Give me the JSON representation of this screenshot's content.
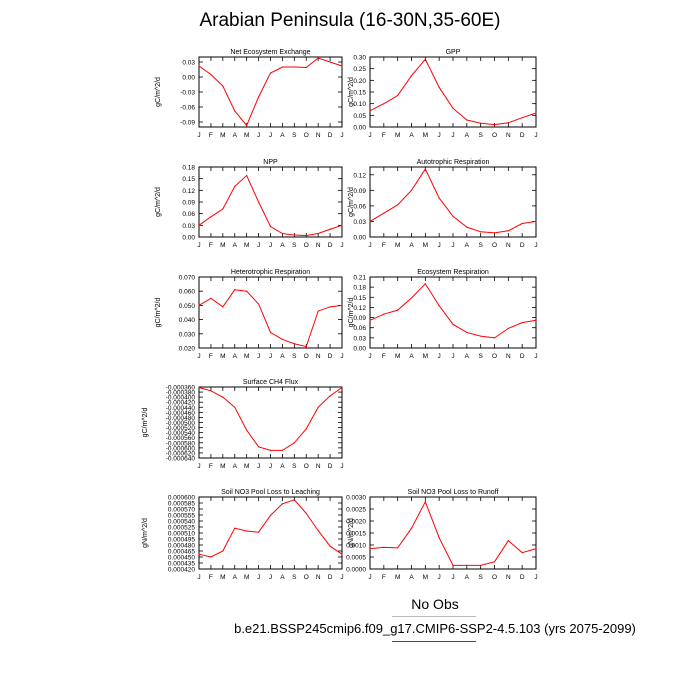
{
  "title": "Arabian Peninsula (16-30N,35-60E)",
  "months": [
    "J",
    "F",
    "M",
    "A",
    "M",
    "J",
    "J",
    "A",
    "S",
    "O",
    "N",
    "D",
    "J"
  ],
  "series_color": "#ff0000",
  "legend": {
    "obs_label": "No Obs",
    "obs_color": "#b9b9b9",
    "case_label": "b.e21.BSSP245cmip6.f09_g17.CMIP6-SSP2-4.5.103 (yrs 2075-2099)",
    "case_color": "#ff0000"
  },
  "chart_data": [
    {
      "type": "line",
      "title": "Net Ecosystem Exchange",
      "ylabel": "gC/m^2/d",
      "ylim": [
        -0.1,
        0.04
      ],
      "yticks": [
        -0.09,
        -0.06,
        -0.03,
        0.0,
        0.03
      ],
      "ytick_labels": [
        "-0.09",
        "-0.06",
        "-0.03",
        "0.00",
        "0.03"
      ],
      "x": [
        "J",
        "F",
        "M",
        "A",
        "M",
        "J",
        "J",
        "A",
        "S",
        "O",
        "N",
        "D",
        "J"
      ],
      "values": [
        0.022,
        0.005,
        -0.018,
        -0.068,
        -0.097,
        -0.04,
        0.008,
        0.02,
        0.02,
        0.019,
        0.038,
        0.03,
        0.022
      ]
    },
    {
      "type": "line",
      "title": "GPP",
      "ylabel": "gC/m^2/d",
      "ylim": [
        0.0,
        0.3
      ],
      "yticks": [
        0.0,
        0.05,
        0.1,
        0.15,
        0.2,
        0.25,
        0.3
      ],
      "ytick_labels": [
        "0.00",
        "0.05",
        "0.10",
        "0.15",
        "0.20",
        "0.25",
        "0.30"
      ],
      "x": [
        "J",
        "F",
        "M",
        "A",
        "M",
        "J",
        "J",
        "A",
        "S",
        "O",
        "N",
        "D",
        "J"
      ],
      "values": [
        0.07,
        0.1,
        0.135,
        0.22,
        0.29,
        0.17,
        0.08,
        0.03,
        0.016,
        0.01,
        0.018,
        0.04,
        0.06
      ]
    },
    {
      "type": "line",
      "title": "NPP",
      "ylabel": "gC/m^2/d",
      "ylim": [
        0.0,
        0.18
      ],
      "yticks": [
        0.0,
        0.03,
        0.06,
        0.09,
        0.12,
        0.15,
        0.18
      ],
      "ytick_labels": [
        "0.00",
        "0.03",
        "0.06",
        "0.09",
        "0.12",
        "0.15",
        "0.18"
      ],
      "x": [
        "J",
        "F",
        "M",
        "A",
        "M",
        "J",
        "J",
        "A",
        "S",
        "O",
        "N",
        "D",
        "J"
      ],
      "values": [
        0.03,
        0.052,
        0.072,
        0.13,
        0.158,
        0.09,
        0.027,
        0.009,
        0.005,
        0.004,
        0.009,
        0.02,
        0.03
      ]
    },
    {
      "type": "line",
      "title": "Autotrophic Respiration",
      "ylabel": "gC/m^2/d",
      "ylim": [
        0.0,
        0.135
      ],
      "yticks": [
        0.0,
        0.03,
        0.06,
        0.09,
        0.12
      ],
      "ytick_labels": [
        "0.00",
        "0.03",
        "0.06",
        "0.09",
        "0.12"
      ],
      "x": [
        "J",
        "F",
        "M",
        "A",
        "M",
        "J",
        "J",
        "A",
        "S",
        "O",
        "N",
        "D",
        "J"
      ],
      "values": [
        0.03,
        0.046,
        0.062,
        0.09,
        0.131,
        0.075,
        0.04,
        0.019,
        0.01,
        0.008,
        0.012,
        0.026,
        0.03
      ]
    },
    {
      "type": "line",
      "title": "Heterotrophic Respiration",
      "ylabel": "gC/m^2/d",
      "ylim": [
        0.02,
        0.07
      ],
      "yticks": [
        0.02,
        0.03,
        0.04,
        0.05,
        0.06,
        0.07
      ],
      "ytick_labels": [
        "0.020",
        "0.030",
        "0.040",
        "0.050",
        "0.060",
        "0.070"
      ],
      "x": [
        "J",
        "F",
        "M",
        "A",
        "M",
        "J",
        "J",
        "A",
        "S",
        "O",
        "N",
        "D",
        "J"
      ],
      "values": [
        0.05,
        0.055,
        0.049,
        0.061,
        0.06,
        0.051,
        0.031,
        0.026,
        0.023,
        0.021,
        0.046,
        0.049,
        0.05
      ]
    },
    {
      "type": "line",
      "title": "Ecosystem Respiration",
      "ylabel": "gC/m^2/d",
      "ylim": [
        0.0,
        0.21
      ],
      "yticks": [
        0.0,
        0.03,
        0.06,
        0.09,
        0.12,
        0.15,
        0.18,
        0.21
      ],
      "ytick_labels": [
        "0.00",
        "0.03",
        "0.06",
        "0.09",
        "0.12",
        "0.15",
        "0.18",
        "0.21"
      ],
      "x": [
        "J",
        "F",
        "M",
        "A",
        "M",
        "J",
        "J",
        "A",
        "S",
        "O",
        "N",
        "D",
        "J"
      ],
      "values": [
        0.082,
        0.1,
        0.112,
        0.148,
        0.19,
        0.125,
        0.07,
        0.046,
        0.035,
        0.03,
        0.058,
        0.075,
        0.082
      ]
    },
    {
      "type": "line",
      "title": "Surface CH4 Flux",
      "ylabel": "gC/m^2/d",
      "ylim": [
        -0.00064,
        -0.00036
      ],
      "yticks": [
        -0.00064,
        -0.0006,
        -0.00056,
        -0.00052,
        -0.00048,
        -0.00044,
        -0.0004,
        -0.00036
      ],
      "ytick_labels": [
        "-0.000640",
        "-0.000600",
        "-0.000560",
        "-0.000520",
        "-0.000480",
        "-0.000440",
        "-0.000400",
        "-0.000360"
      ],
      "ytick_labels_extra": [
        "-0.000620",
        "-0.000580",
        "-0.000540",
        "-0.000500",
        "-0.000460",
        "-0.000420",
        "-0.000380"
      ],
      "x": [
        "J",
        "F",
        "M",
        "A",
        "M",
        "J",
        "J",
        "A",
        "S",
        "O",
        "N",
        "D",
        "J"
      ],
      "values": [
        -0.000362,
        -0.000375,
        -0.0004,
        -0.00044,
        -0.00053,
        -0.000596,
        -0.00061,
        -0.00061,
        -0.00058,
        -0.000525,
        -0.00044,
        -0.000395,
        -0.000362
      ]
    },
    {
      "type": "line",
      "title": "Soil NO3 Pool Loss to Leaching",
      "ylabel": "gN/m^2/d",
      "ylim": [
        0.00042,
        0.0006
      ],
      "yticks": [
        0.00042,
        0.00045,
        0.00048,
        0.00051,
        0.00054,
        0.00057,
        0.0006
      ],
      "ytick_labels": [
        "0.000420",
        "0.000450",
        "0.000480",
        "0.000510",
        "0.000540",
        "0.000570",
        "0.000600"
      ],
      "ytick_labels_extra": [
        "0.000435",
        "0.000465",
        "0.000495",
        "0.000525",
        "0.000555",
        "0.000585"
      ],
      "x": [
        "J",
        "F",
        "M",
        "A",
        "M",
        "J",
        "J",
        "A",
        "S",
        "O",
        "N",
        "D",
        "J"
      ],
      "values": [
        0.000457,
        0.00045,
        0.000465,
        0.000522,
        0.000515,
        0.000512,
        0.000554,
        0.000583,
        0.000593,
        0.000559,
        0.000516,
        0.000477,
        0.000457
      ]
    },
    {
      "type": "line",
      "title": "Soil NO3 Pool Loss to Runoff",
      "ylabel": "gN/m^2/d",
      "ylim": [
        0.0,
        0.003
      ],
      "yticks": [
        0.0,
        0.0005,
        0.001,
        0.0015,
        0.002,
        0.0025,
        0.003
      ],
      "ytick_labels": [
        "0.0000",
        "0.0005",
        "0.0010",
        "0.0015",
        "0.0020",
        "0.0025",
        "0.0030"
      ],
      "x": [
        "J",
        "F",
        "M",
        "A",
        "M",
        "J",
        "J",
        "A",
        "S",
        "O",
        "N",
        "D",
        "J"
      ],
      "values": [
        0.00085,
        0.0009,
        0.00088,
        0.0017,
        0.0028,
        0.0013,
        0.00015,
        0.00015,
        0.00015,
        0.0003,
        0.00118,
        0.00068,
        0.00085
      ]
    }
  ]
}
